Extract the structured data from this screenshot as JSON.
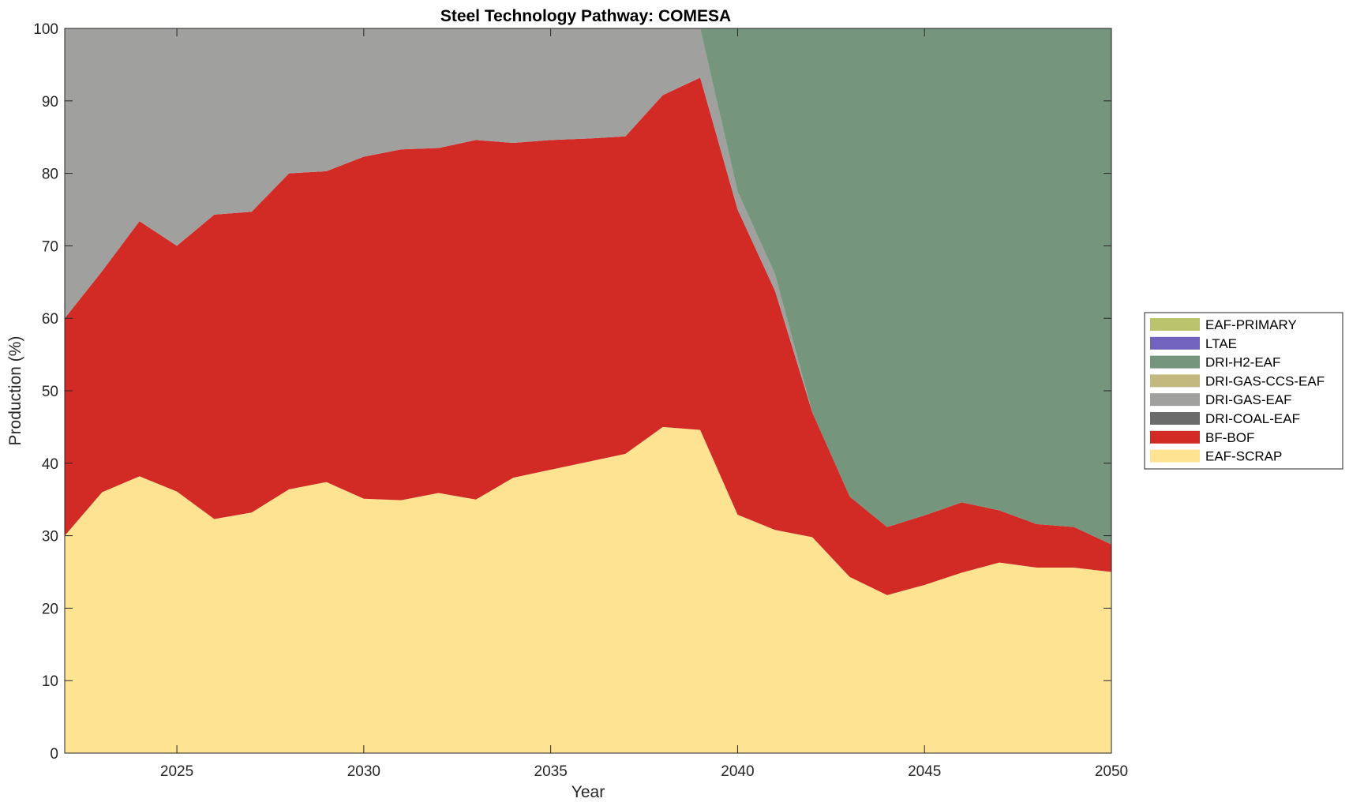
{
  "chart_data": {
    "type": "area",
    "stacked": true,
    "title": "Steel Technology Pathway: COMESA",
    "xlabel": "Year",
    "ylabel": "Production (%)",
    "xlim": [
      2022,
      2050
    ],
    "ylim": [
      0,
      100
    ],
    "xticks": [
      2025,
      2030,
      2035,
      2040,
      2045,
      2050
    ],
    "yticks": [
      0,
      10,
      20,
      30,
      40,
      50,
      60,
      70,
      80,
      90,
      100
    ],
    "grid": false,
    "legend_position": "right",
    "x": [
      2022,
      2023,
      2024,
      2025,
      2026,
      2027,
      2028,
      2029,
      2030,
      2031,
      2032,
      2033,
      2034,
      2035,
      2036,
      2037,
      2038,
      2039,
      2040,
      2041,
      2042,
      2043,
      2044,
      2045,
      2046,
      2047,
      2048,
      2049,
      2050
    ],
    "series": [
      {
        "name": "EAF-SCRAP",
        "color": "#FEE393",
        "values": [
          30,
          36,
          38.2,
          36.1,
          32.3,
          33.2,
          36.4,
          37.4,
          35.1,
          34.9,
          35.9,
          35.0,
          38.0,
          39.1,
          40.2,
          41.3,
          45.0,
          44.6,
          32.9,
          30.8,
          29.8,
          24.3,
          21.8,
          23.2,
          24.9,
          26.3,
          25.6,
          25.6,
          25.0
        ]
      },
      {
        "name": "BF-BOF",
        "color": "#D22B25",
        "values": [
          30,
          30.5,
          35.2,
          33.9,
          42.0,
          41.5,
          43.6,
          42.9,
          47.2,
          48.4,
          47.6,
          49.6,
          46.2,
          45.5,
          44.6,
          43.8,
          45.8,
          48.6,
          42.1,
          33.0,
          17.2,
          11.1,
          9.4,
          9.6,
          9.7,
          7.2,
          6.0,
          5.6,
          3.8
        ]
      },
      {
        "name": "DRI-COAL-EAF",
        "color": "#6B6B6B",
        "values": [
          0,
          0,
          0,
          0,
          0,
          0,
          0,
          0,
          0,
          0,
          0,
          0,
          0,
          0,
          0,
          0,
          0,
          0,
          0,
          0,
          0,
          0,
          0,
          0,
          0,
          0,
          0,
          0,
          0
        ]
      },
      {
        "name": "DRI-GAS-EAF",
        "color": "#A0A09E",
        "values": [
          40,
          33.5,
          26.6,
          30,
          25.7,
          25.3,
          20,
          19.7,
          17.7,
          16.7,
          16.5,
          15.4,
          15.8,
          15.4,
          15.2,
          14.9,
          9.2,
          6.8,
          2.5,
          2.3,
          0,
          0,
          0,
          0,
          0,
          0,
          0,
          0,
          0
        ]
      },
      {
        "name": "DRI-GAS-CCS-EAF",
        "color": "#C3B97E",
        "values": [
          0,
          0,
          0,
          0,
          0,
          0,
          0,
          0,
          0,
          0,
          0,
          0,
          0,
          0,
          0,
          0,
          0,
          0,
          0,
          0,
          0,
          0,
          0,
          0,
          0,
          0,
          0,
          0,
          0
        ]
      },
      {
        "name": "DRI-H2-EAF",
        "color": "#75967D",
        "values": [
          0,
          0,
          0,
          0,
          0,
          0,
          0,
          0,
          0,
          0,
          0,
          0,
          0,
          0,
          0,
          0,
          0,
          0,
          22.5,
          33.9,
          53.0,
          64.6,
          68.8,
          67.2,
          65.4,
          66.5,
          68.4,
          68.8,
          71.2
        ]
      },
      {
        "name": "LTAE",
        "color": "#7264BE",
        "values": [
          0,
          0,
          0,
          0,
          0,
          0,
          0,
          0,
          0,
          0,
          0,
          0,
          0,
          0,
          0,
          0,
          0,
          0,
          0,
          0,
          0,
          0,
          0,
          0,
          0,
          0,
          0,
          0,
          0
        ]
      },
      {
        "name": "EAF-PRIMARY",
        "color": "#B9C46C",
        "values": [
          0,
          0,
          0,
          0,
          0,
          0,
          0,
          0,
          0,
          0,
          0,
          0,
          0,
          0,
          0,
          0,
          0,
          0,
          0,
          0,
          0,
          0,
          0,
          0,
          0,
          0,
          0,
          0,
          0
        ]
      }
    ],
    "legend_order": [
      "EAF-PRIMARY",
      "LTAE",
      "DRI-H2-EAF",
      "DRI-GAS-CCS-EAF",
      "DRI-GAS-EAF",
      "DRI-COAL-EAF",
      "BF-BOF",
      "EAF-SCRAP"
    ]
  }
}
